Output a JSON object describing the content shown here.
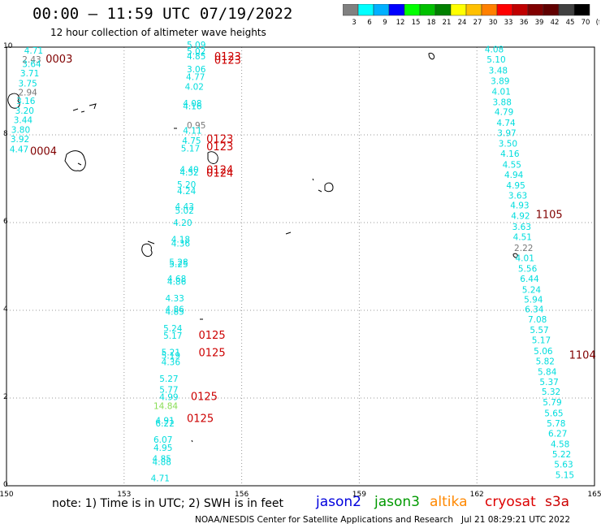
{
  "title": "00:00 – 11:59 UTC 07/19/2022",
  "subtitle": "12 hour collection of altimeter wave heights",
  "legend": {
    "colors": [
      "#808080",
      "#00ffff",
      "#00b0ff",
      "#0000ff",
      "#00ff00",
      "#00c000",
      "#008000",
      "#ffff00",
      "#ffc000",
      "#ff8000",
      "#ff0000",
      "#c00000",
      "#800000",
      "#600000",
      "#404040",
      "#000000"
    ],
    "labels": [
      "3",
      "6",
      "9",
      "12",
      "15",
      "18",
      "21",
      "24",
      "27",
      "30",
      "33",
      "36",
      "39",
      "42",
      "45",
      "70",
      "(ft)"
    ]
  },
  "axes": {
    "x_ticks": [
      "150",
      "153",
      "156",
      "159",
      "162",
      "165"
    ],
    "y_ticks": [
      "0",
      "2",
      "4",
      "6",
      "8",
      "10"
    ]
  },
  "footer": {
    "note": "note:  1) Time is in UTC; 2) SWH is in feet",
    "credit": "NOAA/NESDIS Center for Satellite Applications and Research   Jul 21 08:29:21 UTC 2022",
    "satellites": [
      {
        "name": "jason2",
        "color": "#0000dd"
      },
      {
        "name": "jason3",
        "color": "#009900"
      },
      {
        "name": "altika",
        "color": "#ff8800"
      },
      {
        "name": "cryosat",
        "color": "#dd0000"
      },
      {
        "name": "s3a",
        "color": "#cc0000"
      }
    ]
  },
  "track_labels": [
    {
      "text": "0003",
      "lon": 151.0,
      "lat": 9.65,
      "color": "#800000"
    },
    {
      "text": "0004",
      "lon": 150.6,
      "lat": 7.55,
      "color": "#800000"
    },
    {
      "text": "0123",
      "lon": 155.3,
      "lat": 9.62,
      "color": "#cc0000"
    },
    {
      "text": "0123",
      "lon": 155.3,
      "lat": 9.7,
      "color": "#cc0000"
    },
    {
      "text": "0123",
      "lon": 155.1,
      "lat": 7.82,
      "color": "#cc0000"
    },
    {
      "text": "0123",
      "lon": 155.1,
      "lat": 7.65,
      "color": "#cc0000"
    },
    {
      "text": "0124",
      "lon": 155.1,
      "lat": 7.05,
      "color": "#cc0000"
    },
    {
      "text": "0124",
      "lon": 155.1,
      "lat": 7.12,
      "color": "#cc0000"
    },
    {
      "text": "0125",
      "lon": 154.9,
      "lat": 3.35,
      "color": "#cc0000"
    },
    {
      "text": "0125",
      "lon": 154.9,
      "lat": 2.95,
      "color": "#cc0000"
    },
    {
      "text": "0125",
      "lon": 154.7,
      "lat": 1.95,
      "color": "#cc0000"
    },
    {
      "text": "0125",
      "lon": 154.6,
      "lat": 1.45,
      "color": "#cc0000"
    },
    {
      "text": "1105",
      "lon": 163.5,
      "lat": 6.1,
      "color": "#800000"
    },
    {
      "text": "1104",
      "lon": 164.35,
      "lat": 2.9,
      "color": "#800000"
    }
  ],
  "wave_heights": [
    {
      "v": "4.71",
      "lon": 150.45,
      "lat": 9.85,
      "c": "#00dddd"
    },
    {
      "v": "2.43",
      "lon": 150.4,
      "lat": 9.65,
      "c": "#777777"
    },
    {
      "v": "3.64",
      "lon": 150.4,
      "lat": 9.55,
      "c": "#00dddd"
    },
    {
      "v": "3.71",
      "lon": 150.35,
      "lat": 9.33,
      "c": "#00dddd"
    },
    {
      "v": "3.75",
      "lon": 150.3,
      "lat": 9.1,
      "c": "#00dddd"
    },
    {
      "v": "2.94",
      "lon": 150.3,
      "lat": 8.9,
      "c": "#777777"
    },
    {
      "v": "3.16",
      "lon": 150.25,
      "lat": 8.7,
      "c": "#00dddd"
    },
    {
      "v": "3.20",
      "lon": 150.22,
      "lat": 8.48,
      "c": "#00dddd"
    },
    {
      "v": "3.44",
      "lon": 150.18,
      "lat": 8.27,
      "c": "#00dddd"
    },
    {
      "v": "3.80",
      "lon": 150.12,
      "lat": 8.05,
      "c": "#00dddd"
    },
    {
      "v": "3.92",
      "lon": 150.1,
      "lat": 7.83,
      "c": "#00dddd"
    },
    {
      "v": "4.47",
      "lon": 150.08,
      "lat": 7.6,
      "c": "#00dddd"
    },
    {
      "v": "5.09",
      "lon": 154.6,
      "lat": 9.98,
      "c": "#00dddd"
    },
    {
      "v": "5.02",
      "lon": 154.6,
      "lat": 9.83,
      "c": "#00dddd"
    },
    {
      "v": "4.85",
      "lon": 154.6,
      "lat": 9.72,
      "c": "#00dddd"
    },
    {
      "v": "3.06",
      "lon": 154.6,
      "lat": 9.43,
      "c": "#00dddd"
    },
    {
      "v": "4.77",
      "lon": 154.58,
      "lat": 9.25,
      "c": "#00dddd"
    },
    {
      "v": "4.02",
      "lon": 154.55,
      "lat": 9.03,
      "c": "#00dddd"
    },
    {
      "v": "4.08",
      "lon": 154.5,
      "lat": 8.65,
      "c": "#00dddd"
    },
    {
      "v": "4.16",
      "lon": 154.5,
      "lat": 8.58,
      "c": "#00dddd"
    },
    {
      "v": "0.95",
      "lon": 154.6,
      "lat": 8.15,
      "c": "#777777"
    },
    {
      "v": "4.11",
      "lon": 154.5,
      "lat": 8.03,
      "c": "#00dddd"
    },
    {
      "v": "4.75",
      "lon": 154.48,
      "lat": 7.8,
      "c": "#00dddd"
    },
    {
      "v": "5.17",
      "lon": 154.45,
      "lat": 7.62,
      "c": "#00dddd"
    },
    {
      "v": "4.40",
      "lon": 154.42,
      "lat": 7.14,
      "c": "#00dddd"
    },
    {
      "v": "4.52",
      "lon": 154.42,
      "lat": 7.07,
      "c": "#00dddd"
    },
    {
      "v": "5.20",
      "lon": 154.35,
      "lat": 6.8,
      "c": "#00dddd"
    },
    {
      "v": "4.24",
      "lon": 154.35,
      "lat": 6.65,
      "c": "#00dddd"
    },
    {
      "v": "4.43",
      "lon": 154.3,
      "lat": 6.3,
      "c": "#00dddd"
    },
    {
      "v": "5.02",
      "lon": 154.3,
      "lat": 6.2,
      "c": "#00dddd"
    },
    {
      "v": "4.20",
      "lon": 154.25,
      "lat": 5.93,
      "c": "#00dddd"
    },
    {
      "v": "4.18",
      "lon": 154.2,
      "lat": 5.55,
      "c": "#00dddd"
    },
    {
      "v": "4.36",
      "lon": 154.2,
      "lat": 5.45,
      "c": "#00dddd"
    },
    {
      "v": "5.28",
      "lon": 154.15,
      "lat": 5.03,
      "c": "#00dddd"
    },
    {
      "v": "5.25",
      "lon": 154.15,
      "lat": 4.98,
      "c": "#00dddd"
    },
    {
      "v": "4.68",
      "lon": 154.1,
      "lat": 4.65,
      "c": "#00dddd"
    },
    {
      "v": "4.86",
      "lon": 154.1,
      "lat": 4.58,
      "c": "#00dddd"
    },
    {
      "v": "4.33",
      "lon": 154.05,
      "lat": 4.2,
      "c": "#00dddd"
    },
    {
      "v": "4.86",
      "lon": 154.05,
      "lat": 3.95,
      "c": "#00dddd"
    },
    {
      "v": "4.85",
      "lon": 154.05,
      "lat": 3.9,
      "c": "#00dddd"
    },
    {
      "v": "5.24",
      "lon": 154.0,
      "lat": 3.52,
      "c": "#00dddd"
    },
    {
      "v": "5.17",
      "lon": 154.0,
      "lat": 3.35,
      "c": "#00dddd"
    },
    {
      "v": "5.21",
      "lon": 153.95,
      "lat": 2.97,
      "c": "#00dddd"
    },
    {
      "v": "5.19",
      "lon": 153.95,
      "lat": 2.9,
      "c": "#00dddd"
    },
    {
      "v": "4.36",
      "lon": 153.95,
      "lat": 2.75,
      "c": "#00dddd"
    },
    {
      "v": "5.27",
      "lon": 153.9,
      "lat": 2.37,
      "c": "#00dddd"
    },
    {
      "v": "5.77",
      "lon": 153.9,
      "lat": 2.12,
      "c": "#00dddd"
    },
    {
      "v": "4.99",
      "lon": 153.9,
      "lat": 1.95,
      "c": "#00dddd"
    },
    {
      "v": "14.84",
      "lon": 153.75,
      "lat": 1.75,
      "c": "#88dd55"
    },
    {
      "v": "4.91",
      "lon": 153.8,
      "lat": 1.42,
      "c": "#00dddd"
    },
    {
      "v": "6.22",
      "lon": 153.8,
      "lat": 1.35,
      "c": "#00dddd"
    },
    {
      "v": "6.07",
      "lon": 153.75,
      "lat": 0.98,
      "c": "#00dddd"
    },
    {
      "v": "4.95",
      "lon": 153.75,
      "lat": 0.8,
      "c": "#00dddd"
    },
    {
      "v": "4.85",
      "lon": 153.72,
      "lat": 0.55,
      "c": "#00dddd"
    },
    {
      "v": "4.88",
      "lon": 153.72,
      "lat": 0.47,
      "c": "#00dddd"
    },
    {
      "v": "4.71",
      "lon": 153.68,
      "lat": 0.1,
      "c": "#00dddd"
    },
    {
      "v": "4.08",
      "lon": 162.2,
      "lat": 9.88,
      "c": "#00dddd"
    },
    {
      "v": "5.10",
      "lon": 162.25,
      "lat": 9.65,
      "c": "#00dddd"
    },
    {
      "v": "3.48",
      "lon": 162.3,
      "lat": 9.4,
      "c": "#00dddd"
    },
    {
      "v": "3.89",
      "lon": 162.35,
      "lat": 9.16,
      "c": "#00dddd"
    },
    {
      "v": "4.01",
      "lon": 162.38,
      "lat": 8.92,
      "c": "#00dddd"
    },
    {
      "v": "3.88",
      "lon": 162.4,
      "lat": 8.68,
      "c": "#00dddd"
    },
    {
      "v": "4.79",
      "lon": 162.45,
      "lat": 8.45,
      "c": "#00dddd"
    },
    {
      "v": "4.74",
      "lon": 162.5,
      "lat": 8.2,
      "c": "#00dddd"
    },
    {
      "v": "3.97",
      "lon": 162.52,
      "lat": 7.97,
      "c": "#00dddd"
    },
    {
      "v": "3.50",
      "lon": 162.55,
      "lat": 7.73,
      "c": "#00dddd"
    },
    {
      "v": "4.16",
      "lon": 162.6,
      "lat": 7.5,
      "c": "#00dddd"
    },
    {
      "v": "4.55",
      "lon": 162.65,
      "lat": 7.25,
      "c": "#00dddd"
    },
    {
      "v": "4.94",
      "lon": 162.7,
      "lat": 7.02,
      "c": "#00dddd"
    },
    {
      "v": "4.95",
      "lon": 162.75,
      "lat": 6.78,
      "c": "#00dddd"
    },
    {
      "v": "3.63",
      "lon": 162.8,
      "lat": 6.55,
      "c": "#00dddd"
    },
    {
      "v": "4.93",
      "lon": 162.85,
      "lat": 6.32,
      "c": "#00dddd"
    },
    {
      "v": "4.92",
      "lon": 162.87,
      "lat": 6.08,
      "c": "#00dddd"
    },
    {
      "v": "3.63",
      "lon": 162.9,
      "lat": 5.83,
      "c": "#00dddd"
    },
    {
      "v": "4.51",
      "lon": 162.92,
      "lat": 5.6,
      "c": "#00dddd"
    },
    {
      "v": "2.22",
      "lon": 162.95,
      "lat": 5.35,
      "c": "#777777"
    },
    {
      "v": "4.01",
      "lon": 162.98,
      "lat": 5.12,
      "c": "#00dddd"
    },
    {
      "v": "5.56",
      "lon": 163.05,
      "lat": 4.88,
      "c": "#00dddd"
    },
    {
      "v": "6.44",
      "lon": 163.1,
      "lat": 4.65,
      "c": "#00dddd"
    },
    {
      "v": "5.24",
      "lon": 163.15,
      "lat": 4.4,
      "c": "#00dddd"
    },
    {
      "v": "5.94",
      "lon": 163.2,
      "lat": 4.18,
      "c": "#00dddd"
    },
    {
      "v": "6.34",
      "lon": 163.22,
      "lat": 3.95,
      "c": "#00dddd"
    },
    {
      "v": "7.08",
      "lon": 163.3,
      "lat": 3.72,
      "c": "#00dddd"
    },
    {
      "v": "5.57",
      "lon": 163.35,
      "lat": 3.48,
      "c": "#00dddd"
    },
    {
      "v": "5.17",
      "lon": 163.4,
      "lat": 3.25,
      "c": "#00dddd"
    },
    {
      "v": "5.06",
      "lon": 163.45,
      "lat": 3.0,
      "c": "#00dddd"
    },
    {
      "v": "5.82",
      "lon": 163.5,
      "lat": 2.77,
      "c": "#00dddd"
    },
    {
      "v": "5.84",
      "lon": 163.55,
      "lat": 2.53,
      "c": "#00dddd"
    },
    {
      "v": "5.37",
      "lon": 163.6,
      "lat": 2.3,
      "c": "#00dddd"
    },
    {
      "v": "5.32",
      "lon": 163.65,
      "lat": 2.07,
      "c": "#00dddd"
    },
    {
      "v": "5.79",
      "lon": 163.68,
      "lat": 1.83,
      "c": "#00dddd"
    },
    {
      "v": "5.65",
      "lon": 163.72,
      "lat": 1.58,
      "c": "#00dddd"
    },
    {
      "v": "5.78",
      "lon": 163.78,
      "lat": 1.35,
      "c": "#00dddd"
    },
    {
      "v": "6.27",
      "lon": 163.82,
      "lat": 1.12,
      "c": "#00dddd"
    },
    {
      "v": "4.58",
      "lon": 163.88,
      "lat": 0.88,
      "c": "#00dddd"
    },
    {
      "v": "5.22",
      "lon": 163.92,
      "lat": 0.65,
      "c": "#00dddd"
    },
    {
      "v": "5.63",
      "lon": 163.97,
      "lat": 0.42,
      "c": "#00dddd"
    },
    {
      "v": "5.15",
      "lon": 164.0,
      "lat": 0.18,
      "c": "#00dddd"
    }
  ]
}
